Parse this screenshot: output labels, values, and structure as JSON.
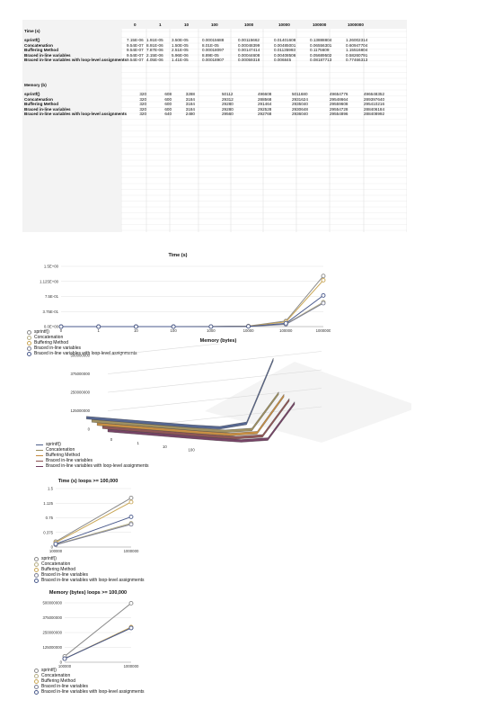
{
  "sheet": {
    "columns": [
      "0",
      "1",
      "10",
      "100",
      "1000",
      "10000",
      "100000",
      "1000000"
    ],
    "time_header": "Time (s)",
    "memory_header": "Memory (b)",
    "time_rows": [
      {
        "label": "sprintf()",
        "values": [
          "7.15E-06",
          "1.91E-05",
          "3.50E-05",
          "0.00015688",
          "0.00115662",
          "0.01401608",
          "0.13888804",
          "1.26002314"
        ]
      },
      {
        "label": "Concatenation",
        "values": [
          "9.54E-07",
          "8.91E-06",
          "1.50E-05",
          "8.01E-05",
          "0.00048399",
          "0.00485001",
          "0.06556301",
          "0.60947704"
        ]
      },
      {
        "label": "Buffering Method",
        "values": [
          "9.54E-07",
          "7.87E-06",
          "2.51E-05",
          "0.00018097",
          "0.00147414",
          "0.01135993",
          "0.1175609",
          "1.15516804"
        ]
      },
      {
        "label": "Braced in-line variables",
        "values": [
          "9.54E-07",
          "2.15E-06",
          "5.96E-06",
          "8.89E-05",
          "0.00044608",
          "0.00408506",
          "0.05689502",
          "0.58260791"
        ]
      },
      {
        "label": "Braced in-line variables with loop-level assignments",
        "values": [
          "9.54E-07",
          "4.05E-06",
          "1.41E-05",
          "0.00018907",
          "0.00059318",
          "0.006845",
          "0.08187713",
          "0.77466313"
        ]
      }
    ],
    "memory_rows": [
      {
        "label": "sprintf()",
        "values": [
          "",
          "320",
          "608",
          "3288",
          "50112",
          "496608",
          "5011680",
          "49654776",
          "496648352"
        ]
      },
      {
        "label": "Concatenation",
        "values": [
          "",
          "320",
          "600",
          "3184",
          "29312",
          "288568",
          "2931624",
          "29548664",
          "289397640"
        ]
      },
      {
        "label": "Buffering Method",
        "values": [
          "",
          "320",
          "600",
          "3184",
          "29280",
          "291464",
          "2935040",
          "29559608",
          "295410216"
        ]
      },
      {
        "label": "Braced in-line variables",
        "values": [
          "",
          "320",
          "600",
          "3184",
          "29280",
          "292528",
          "2930648",
          "29554728",
          "288406184"
        ]
      },
      {
        "label": "Braced in-line variables with loop-level assignments",
        "values": [
          "",
          "320",
          "640",
          "2480",
          "29560",
          "292768",
          "2936040",
          "29554896",
          "288408992"
        ]
      }
    ]
  },
  "chart_data": [
    {
      "type": "line",
      "title": "Time (s)",
      "categories": [
        "0",
        "1",
        "10",
        "100",
        "1000",
        "10000",
        "100000",
        "1000000"
      ],
      "y_ticks": [
        "0.0E+00",
        "3.75E-01",
        "7.5E-01",
        "1.125E+00",
        "1.5E+00"
      ],
      "ylim": [
        0,
        1.5
      ],
      "series": [
        {
          "name": "sprintf()",
          "values": [
            7.15e-06,
            1.91e-05,
            3.5e-05,
            0.00015688,
            0.00115662,
            0.01401608,
            0.13888804,
            1.26002314
          ]
        },
        {
          "name": "Concatenation",
          "values": [
            9.54e-07,
            8.91e-06,
            1.5e-05,
            8.01e-05,
            0.00048399,
            0.00485001,
            0.06556301,
            0.60947704
          ]
        },
        {
          "name": "Buffering Method",
          "values": [
            9.54e-07,
            7.87e-06,
            2.51e-05,
            0.00018097,
            0.00147414,
            0.01135993,
            0.1175609,
            1.15516804
          ]
        },
        {
          "name": "Braced in-line variables",
          "values": [
            9.54e-07,
            2.15e-06,
            5.96e-06,
            8.89e-05,
            0.00044608,
            0.00408506,
            0.05689502,
            0.58260791
          ]
        },
        {
          "name": "Braced in-line variables with loop-level assignments",
          "values": [
            9.54e-07,
            4.05e-06,
            1.41e-05,
            0.00018907,
            0.00059318,
            0.006845,
            0.08187713,
            0.77466313
          ]
        }
      ]
    },
    {
      "type": "line",
      "title": "Memory (bytes)",
      "categories": [
        "0",
        "1",
        "10",
        "100",
        "1000",
        "10000",
        "100000",
        "1000000"
      ],
      "y_ticks": [
        "0",
        "125000000",
        "250000000",
        "375000000",
        "500000000"
      ],
      "ylim": [
        0,
        500000000
      ],
      "series": [
        {
          "name": "sprintf()",
          "values": [
            320,
            608,
            3288,
            50112,
            496608,
            5011680,
            49654776,
            496648352
          ]
        },
        {
          "name": "Concatenation",
          "values": [
            320,
            600,
            3184,
            29312,
            288568,
            2931624,
            29548664,
            289397640
          ]
        },
        {
          "name": "Buffering Method",
          "values": [
            320,
            600,
            3184,
            29280,
            291464,
            2935040,
            29559608,
            295410216
          ]
        },
        {
          "name": "Braced in-line variables",
          "values": [
            320,
            600,
            3184,
            29280,
            292528,
            2930648,
            29554728,
            288406184
          ]
        },
        {
          "name": "Braced in-line variables with loop-level assignments",
          "values": [
            320,
            640,
            2480,
            29560,
            292768,
            2936040,
            29554896,
            288408992
          ]
        }
      ]
    },
    {
      "type": "line",
      "title": "Time (s) loops >= 100,000",
      "categories": [
        "100000",
        "1000000"
      ],
      "y_ticks": [
        "0",
        "0.375",
        "0.75",
        "1.125",
        "1.5"
      ],
      "ylim": [
        0,
        1.5
      ],
      "series": [
        {
          "name": "sprintf()",
          "values": [
            0.13888804,
            1.26002314
          ]
        },
        {
          "name": "Concatenation",
          "values": [
            0.06556301,
            0.60947704
          ]
        },
        {
          "name": "Buffering Method",
          "values": [
            0.1175609,
            1.15516804
          ]
        },
        {
          "name": "Braced in-line variables",
          "values": [
            0.05689502,
            0.58260791
          ]
        },
        {
          "name": "Braced in-line variables with loop-level assignments",
          "values": [
            0.08187713,
            0.77466313
          ]
        }
      ]
    },
    {
      "type": "line",
      "title": "Memory (bytes) loops >= 100,000",
      "categories": [
        "100000",
        "1000000"
      ],
      "y_ticks": [
        "0",
        "125000000",
        "250000000",
        "375000000",
        "500000000"
      ],
      "ylim": [
        0,
        500000000
      ],
      "series": [
        {
          "name": "sprintf()",
          "values": [
            49654776,
            496648352
          ]
        },
        {
          "name": "Concatenation",
          "values": [
            29548664,
            289397640
          ]
        },
        {
          "name": "Buffering Method",
          "values": [
            29559608,
            295410216
          ]
        },
        {
          "name": "Braced in-line variables",
          "values": [
            29554728,
            288406184
          ]
        },
        {
          "name": "Braced in-line variables with loop-level assignments",
          "values": [
            29554896,
            288408992
          ]
        }
      ]
    }
  ],
  "colors": {
    "series": [
      "#8a8a8a",
      "#b5ae86",
      "#c9a655",
      "#7c7f94",
      "#4a5a8c"
    ],
    "mem3d": [
      "#4e5f8c",
      "#9b8c5a",
      "#c68a3b",
      "#8a4e4e",
      "#6f3a5e"
    ],
    "grid": "#d9d9d9"
  }
}
